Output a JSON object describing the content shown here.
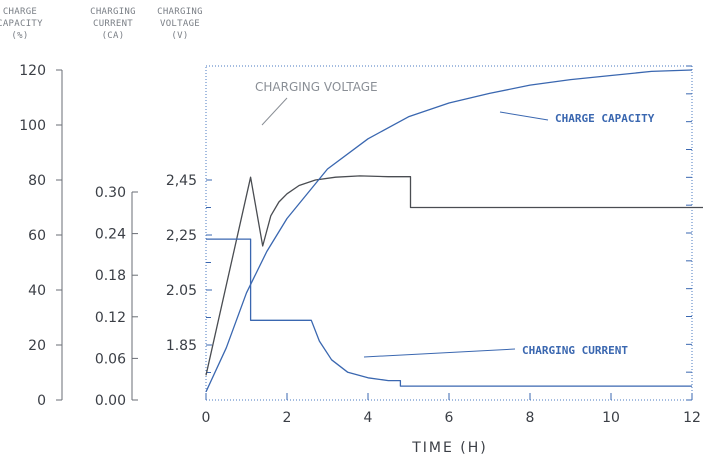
{
  "chart_data": {
    "type": "line",
    "xlabel": "TIME (H)",
    "x_ticks": [
      0,
      2,
      4,
      6,
      8,
      10,
      12
    ],
    "xlim": [
      0,
      12
    ],
    "axes": [
      {
        "id": "capacity",
        "title": [
          "CHARGE",
          "CAPACITY",
          "(%)"
        ],
        "ticks": [
          "120",
          "100",
          "80",
          "60",
          "40",
          "20",
          "0"
        ],
        "ylim": [
          0,
          120
        ]
      },
      {
        "id": "current",
        "title": [
          "CHARGING",
          "CURRENT",
          "(CA)"
        ],
        "ticks": [
          "0.30",
          "0.24",
          "0.18",
          "0.12",
          "0.06",
          "0.00"
        ],
        "ylim": [
          0,
          0.3
        ]
      },
      {
        "id": "voltage",
        "title": [
          "CHARGING",
          "VOLTAGE",
          "(V)"
        ],
        "ticks": [
          "2,45",
          "2,25",
          "2.05",
          "1.85"
        ],
        "ylim": [
          1.65,
          2.55
        ]
      }
    ],
    "series": [
      {
        "name": "CHARGING VOLTAGE",
        "axis": "voltage",
        "color": "#4a4d52",
        "x": [
          0,
          1.1,
          1.4,
          1.6,
          1.8,
          2.0,
          2.3,
          2.7,
          3.2,
          3.8,
          4.5,
          5.05,
          5.05,
          12.3
        ],
        "y": [
          1.74,
          2.46,
          2.21,
          2.32,
          2.37,
          2.4,
          2.43,
          2.45,
          2.46,
          2.465,
          2.462,
          2.462,
          2.35,
          2.35
        ]
      },
      {
        "name": "CHARGE CAPACITY",
        "axis": "capacity",
        "color": "#3a67b0",
        "x": [
          0,
          0.5,
          1,
          1.5,
          2,
          3,
          4,
          5,
          6,
          7,
          8,
          9,
          10,
          11,
          12
        ],
        "y": [
          3,
          19,
          39,
          54,
          66,
          84,
          95,
          103,
          108,
          111.5,
          114.5,
          116.5,
          118,
          119.5,
          120
        ]
      },
      {
        "name": "CHARGING CURRENT",
        "axis": "current",
        "color": "#3a67b0",
        "x": [
          0,
          1.1,
          1.1,
          2.6,
          2.8,
          3.1,
          3.5,
          4,
          4.5,
          4.8,
          4.8,
          12
        ],
        "y": [
          0.232,
          0.232,
          0.115,
          0.115,
          0.085,
          0.058,
          0.04,
          0.032,
          0.028,
          0.028,
          0.02,
          0.02
        ]
      }
    ],
    "annotations": [
      "CHARGE CAPACITY",
      "CHARGING CURRENT",
      "CHARGING VOLTAGE"
    ]
  }
}
